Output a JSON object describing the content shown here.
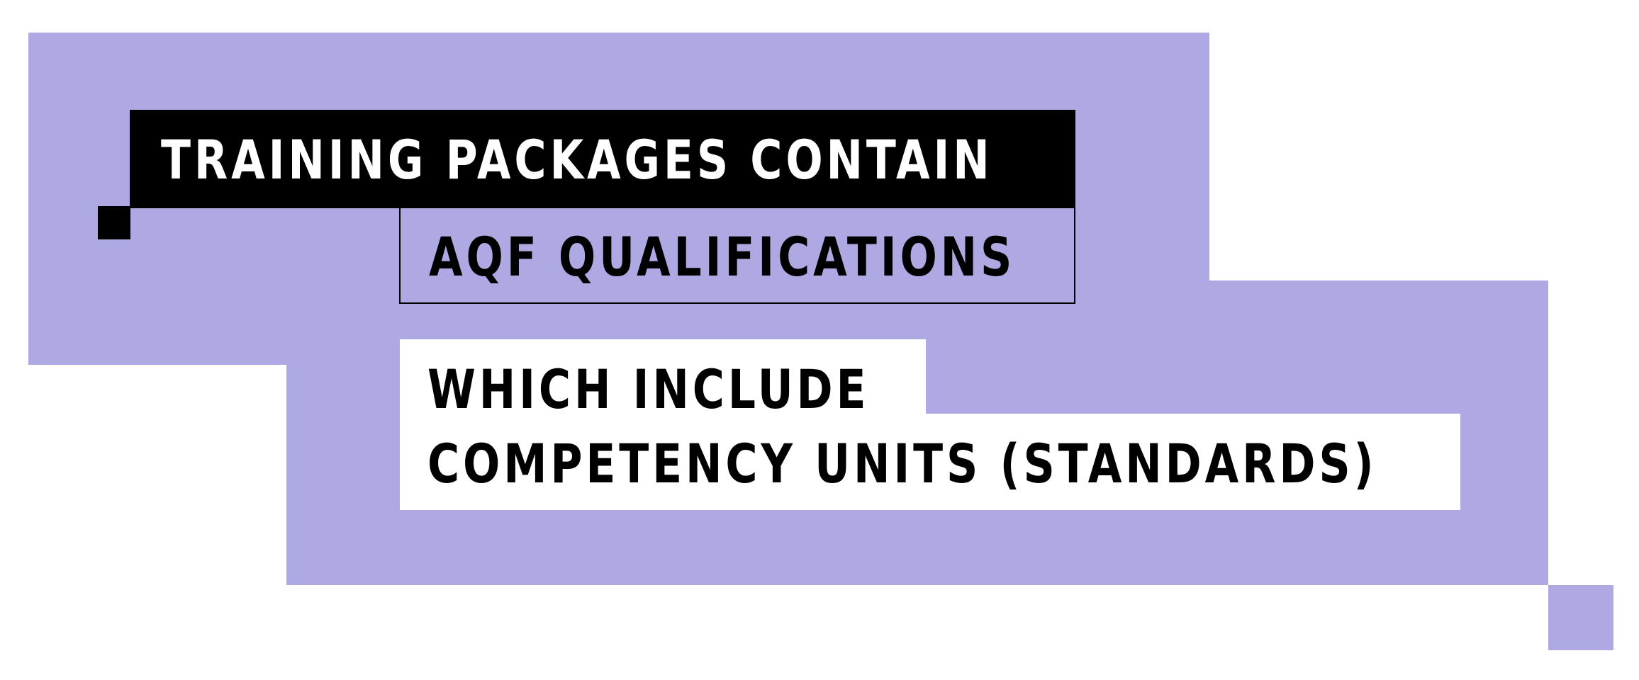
{
  "colors": {
    "accent": "#aea9e2",
    "dark": "#000000",
    "light": "#ffffff"
  },
  "diagram": {
    "line1": "TRAINING PACKAGES CONTAIN",
    "line2": "AQF QUALIFICATIONS",
    "line3": "WHICH INCLUDE",
    "line4": "COMPETENCY UNITS (STANDARDS)"
  }
}
